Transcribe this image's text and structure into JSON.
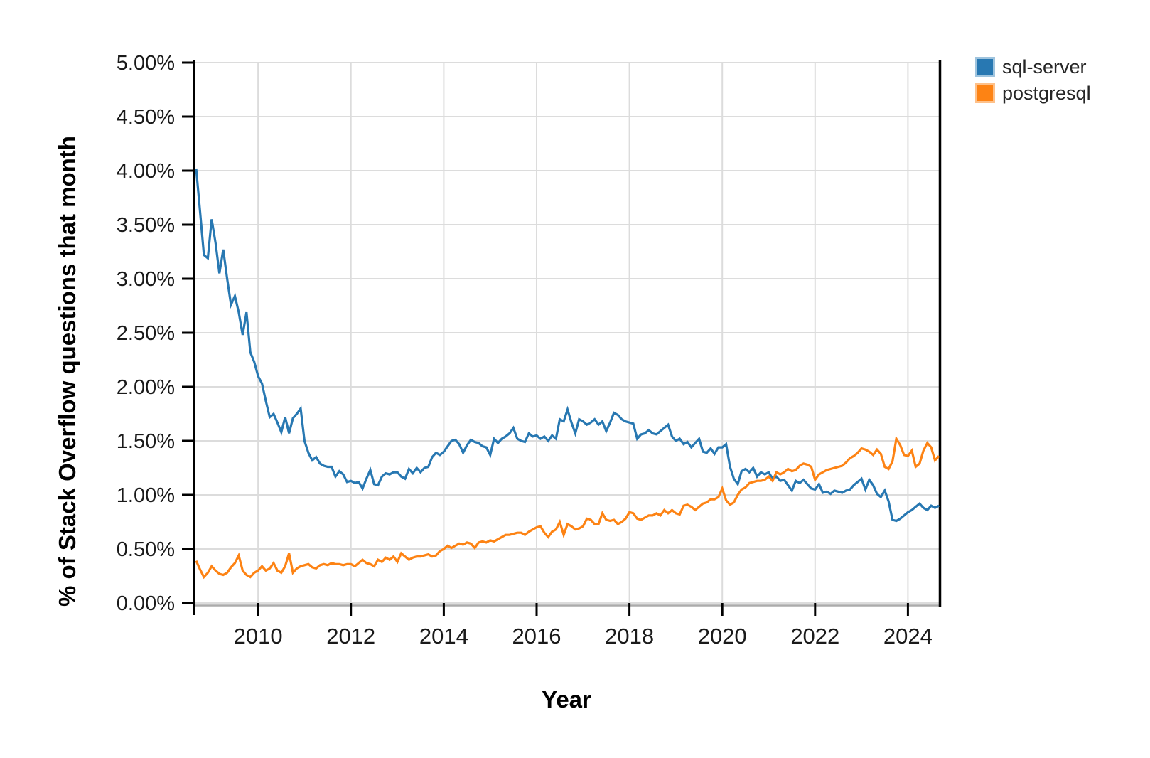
{
  "styles": {
    "background": "#ffffff",
    "grid_color": "#dcdcdc",
    "axis_color": "#000000",
    "bottom_axis_color": "#ababab",
    "text_color": "#1a1a1a",
    "sql_server_color": "#2878b2",
    "postgresql_color": "#fd8314"
  },
  "chart_data": {
    "type": "line",
    "title": "",
    "x_axis": {
      "label": "Year",
      "tick_years": [
        2010,
        2012,
        2014,
        2016,
        2018,
        2020,
        2022,
        2024
      ],
      "tick_labels": [
        "2010",
        "2012",
        "2014",
        "2016",
        "2018",
        "2020",
        "2022",
        "2024"
      ],
      "domain_start_decimal_year": 2008.62,
      "domain_end_decimal_year": 2024.69
    },
    "y_axis": {
      "label": "% of Stack Overflow questions that month",
      "tick_values": [
        0,
        0.5,
        1.0,
        1.5,
        2.0,
        2.5,
        3.0,
        3.5,
        4.0,
        4.5,
        5.0
      ],
      "tick_labels": [
        "0.00%",
        "0.50%",
        "1.00%",
        "1.50%",
        "2.00%",
        "2.50%",
        "3.00%",
        "3.50%",
        "4.00%",
        "4.50%",
        "5.00%"
      ],
      "range": [
        0,
        5
      ]
    },
    "grid": true,
    "legend_position": "top-right",
    "series_start": "2008-09",
    "series_start_decimal_year": 2008.6667,
    "series_frequency": "monthly",
    "series": [
      {
        "name": "sql-server",
        "color": "#2878b2",
        "swatch_border": "#9fc4de",
        "values": [
          4.02,
          3.62,
          3.22,
          3.19,
          3.55,
          3.33,
          3.05,
          3.27,
          3.0,
          2.76,
          2.84,
          2.69,
          2.48,
          2.69,
          2.32,
          2.23,
          2.1,
          2.03,
          1.87,
          1.72,
          1.75,
          1.67,
          1.58,
          1.72,
          1.57,
          1.71,
          1.75,
          1.8,
          1.5,
          1.39,
          1.32,
          1.35,
          1.29,
          1.27,
          1.26,
          1.26,
          1.17,
          1.22,
          1.19,
          1.12,
          1.13,
          1.11,
          1.12,
          1.06,
          1.15,
          1.23,
          1.1,
          1.09,
          1.17,
          1.2,
          1.19,
          1.21,
          1.21,
          1.17,
          1.15,
          1.24,
          1.2,
          1.25,
          1.21,
          1.25,
          1.26,
          1.35,
          1.39,
          1.37,
          1.4,
          1.45,
          1.5,
          1.51,
          1.47,
          1.39,
          1.46,
          1.51,
          1.49,
          1.48,
          1.45,
          1.44,
          1.37,
          1.52,
          1.48,
          1.52,
          1.54,
          1.57,
          1.62,
          1.52,
          1.5,
          1.49,
          1.57,
          1.54,
          1.55,
          1.52,
          1.54,
          1.5,
          1.55,
          1.52,
          1.7,
          1.68,
          1.79,
          1.67,
          1.57,
          1.7,
          1.68,
          1.65,
          1.67,
          1.7,
          1.65,
          1.68,
          1.59,
          1.67,
          1.76,
          1.74,
          1.7,
          1.68,
          1.67,
          1.66,
          1.52,
          1.56,
          1.57,
          1.6,
          1.57,
          1.56,
          1.59,
          1.62,
          1.65,
          1.54,
          1.5,
          1.52,
          1.47,
          1.49,
          1.44,
          1.48,
          1.52,
          1.4,
          1.39,
          1.43,
          1.38,
          1.44,
          1.44,
          1.47,
          1.26,
          1.15,
          1.1,
          1.22,
          1.24,
          1.21,
          1.25,
          1.17,
          1.21,
          1.19,
          1.21,
          1.15,
          1.17,
          1.13,
          1.14,
          1.09,
          1.04,
          1.13,
          1.11,
          1.14,
          1.1,
          1.06,
          1.05,
          1.1,
          1.02,
          1.03,
          1.01,
          1.04,
          1.03,
          1.02,
          1.04,
          1.05,
          1.09,
          1.12,
          1.15,
          1.05,
          1.14,
          1.09,
          1.01,
          0.98,
          1.04,
          0.94,
          0.77,
          0.76,
          0.78,
          0.81,
          0.84,
          0.86,
          0.89,
          0.92,
          0.88,
          0.86,
          0.9,
          0.88,
          0.9
        ]
      },
      {
        "name": "postgresql",
        "color": "#fd8314",
        "swatch_border": "#fec18a",
        "values": [
          0.39,
          0.31,
          0.24,
          0.28,
          0.34,
          0.3,
          0.27,
          0.26,
          0.28,
          0.33,
          0.37,
          0.44,
          0.3,
          0.26,
          0.24,
          0.28,
          0.3,
          0.34,
          0.3,
          0.32,
          0.37,
          0.3,
          0.28,
          0.34,
          0.46,
          0.28,
          0.32,
          0.34,
          0.35,
          0.36,
          0.33,
          0.32,
          0.35,
          0.36,
          0.35,
          0.37,
          0.36,
          0.36,
          0.35,
          0.36,
          0.36,
          0.34,
          0.37,
          0.4,
          0.37,
          0.36,
          0.34,
          0.4,
          0.38,
          0.42,
          0.4,
          0.43,
          0.38,
          0.46,
          0.43,
          0.4,
          0.42,
          0.43,
          0.43,
          0.44,
          0.45,
          0.43,
          0.44,
          0.48,
          0.5,
          0.53,
          0.51,
          0.53,
          0.55,
          0.54,
          0.56,
          0.55,
          0.51,
          0.56,
          0.57,
          0.56,
          0.58,
          0.57,
          0.59,
          0.61,
          0.63,
          0.63,
          0.64,
          0.65,
          0.65,
          0.63,
          0.66,
          0.68,
          0.7,
          0.71,
          0.65,
          0.61,
          0.66,
          0.68,
          0.75,
          0.63,
          0.73,
          0.71,
          0.68,
          0.69,
          0.71,
          0.78,
          0.77,
          0.73,
          0.73,
          0.83,
          0.77,
          0.76,
          0.77,
          0.73,
          0.75,
          0.78,
          0.84,
          0.83,
          0.78,
          0.77,
          0.79,
          0.81,
          0.81,
          0.83,
          0.81,
          0.86,
          0.83,
          0.86,
          0.83,
          0.82,
          0.9,
          0.91,
          0.89,
          0.86,
          0.89,
          0.92,
          0.93,
          0.96,
          0.96,
          0.98,
          1.06,
          0.95,
          0.91,
          0.93,
          1.0,
          1.05,
          1.07,
          1.11,
          1.12,
          1.13,
          1.13,
          1.14,
          1.17,
          1.13,
          1.21,
          1.19,
          1.21,
          1.24,
          1.22,
          1.23,
          1.27,
          1.29,
          1.28,
          1.26,
          1.14,
          1.19,
          1.21,
          1.23,
          1.24,
          1.25,
          1.26,
          1.27,
          1.3,
          1.34,
          1.36,
          1.39,
          1.43,
          1.42,
          1.4,
          1.37,
          1.42,
          1.38,
          1.26,
          1.24,
          1.31,
          1.52,
          1.46,
          1.37,
          1.36,
          1.41,
          1.26,
          1.29,
          1.41,
          1.48,
          1.44,
          1.32,
          1.36
        ]
      }
    ]
  }
}
